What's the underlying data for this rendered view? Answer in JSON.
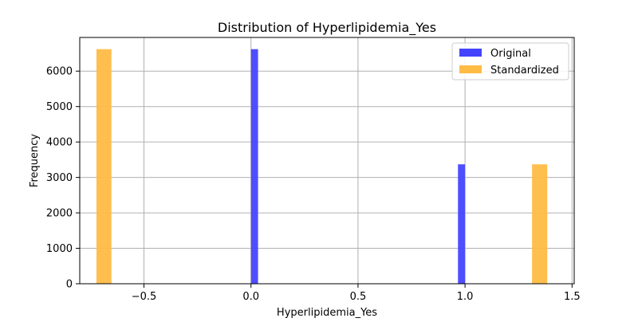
{
  "chart_data": {
    "type": "bar",
    "title": "Distribution of Hyperlipidemia_Yes",
    "xlabel": "Hyperlipidemia_Yes",
    "ylabel": "Frequency",
    "xlim": [
      -0.8,
      1.51
    ],
    "ylim": [
      0,
      6950
    ],
    "xticks": [
      -0.5,
      0.0,
      0.5,
      1.0,
      1.5
    ],
    "xtick_labels": [
      "−0.5",
      "0.0",
      "0.5",
      "1.0",
      "1.5"
    ],
    "yticks": [
      0,
      1000,
      2000,
      3000,
      4000,
      5000,
      6000
    ],
    "ytick_labels": [
      "0",
      "1000",
      "2000",
      "3000",
      "4000",
      "5000",
      "6000"
    ],
    "grid": true,
    "legend_position": "top-right",
    "series": [
      {
        "name": "Original",
        "color": "#4444ff",
        "bars": [
          {
            "x_start": 0.0,
            "x_end": 0.033,
            "value": 6620
          },
          {
            "x_start": 0.967,
            "x_end": 1.0,
            "value": 3370
          }
        ]
      },
      {
        "name": "Standardized",
        "color": "#ffbc44",
        "bars": [
          {
            "x_start": -0.722,
            "x_end": -0.652,
            "value": 6620
          },
          {
            "x_start": 1.313,
            "x_end": 1.384,
            "value": 3370
          }
        ]
      }
    ]
  }
}
